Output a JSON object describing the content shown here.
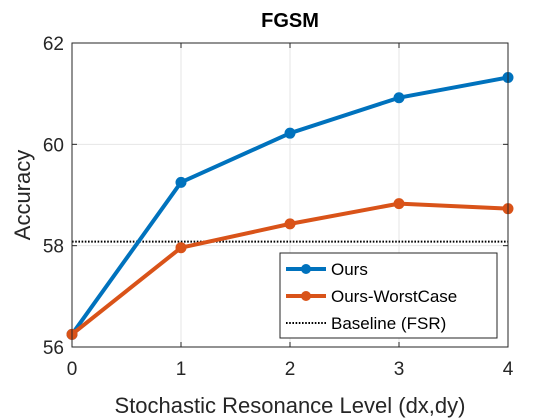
{
  "chart_data": {
    "type": "line",
    "title": "FGSM",
    "xlabel": "Stochastic Resonance Level (dx,dy)",
    "ylabel": "Accuracy",
    "x": [
      0,
      1,
      2,
      3,
      4
    ],
    "xlim": [
      0,
      4
    ],
    "ylim": [
      56,
      62
    ],
    "xticks": [
      "0",
      "1",
      "2",
      "3",
      "4"
    ],
    "yticks": [
      "56",
      "58",
      "60",
      "62"
    ],
    "grid": true,
    "legend_position": "bottom-right",
    "series": [
      {
        "name": "Ours",
        "values": [
          56.25,
          59.25,
          60.22,
          60.92,
          61.32
        ],
        "color": "#0072BD",
        "style": "solid",
        "marker": "circle"
      },
      {
        "name": "Ours-WorstCase",
        "values": [
          56.25,
          57.96,
          58.43,
          58.83,
          58.73
        ],
        "color": "#D95319",
        "style": "solid",
        "marker": "circle"
      },
      {
        "name": "Baseline (FSR)",
        "values": [
          58.08,
          58.08,
          58.08,
          58.08,
          58.08
        ],
        "color": "#000000",
        "style": "dotted",
        "marker": "none"
      }
    ]
  }
}
